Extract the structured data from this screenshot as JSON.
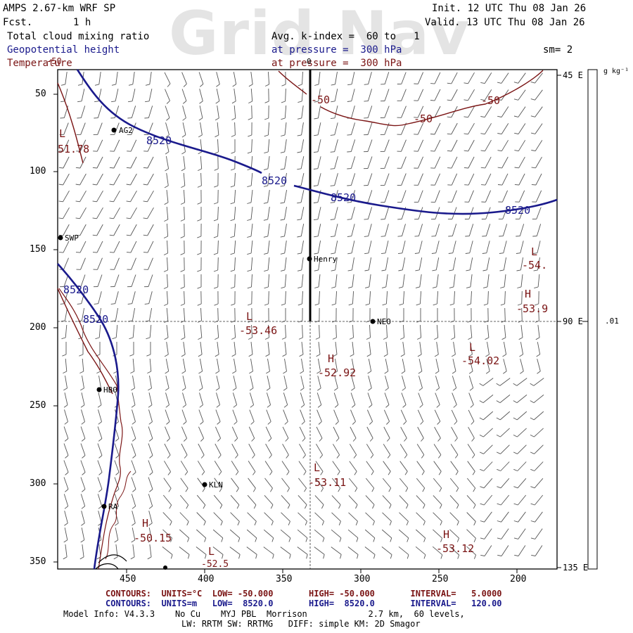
{
  "header": {
    "model_title": "AMPS 2.67-km WRF SP",
    "fcst_label": "Fcst.",
    "fcst_value": "1 h",
    "init": "Init. 12 UTC Thu 08 Jan 26",
    "valid": "Valid. 13 UTC Thu 08 Jan 26",
    "watermark": "Grid Nav"
  },
  "fields": [
    {
      "name": "Total cloud mixing ratio",
      "detail": "Avg. k-index =  60 to   1",
      "color": "#000000"
    },
    {
      "name": "Geopotential height",
      "detail": "at pressure =  300 hPa",
      "color": "#1a1a8c"
    },
    {
      "name": "Temperature",
      "detail": "at pressure =  300 hPa",
      "color": "#7a1414"
    }
  ],
  "smoothing": "sm= 2",
  "colorbar": {
    "units": "g kg⁻¹",
    "tick_label": ".01"
  },
  "axes": {
    "y_ticks": [
      "50",
      "100",
      "150",
      "200",
      "250",
      "300",
      "350"
    ],
    "x_ticks": [
      "450",
      "400",
      "350",
      "300",
      "250",
      "200"
    ],
    "lon_labels": [
      "45 E",
      "90 E",
      "135 E"
    ],
    "lon_top": "0"
  },
  "stations": [
    {
      "code": "AG2"
    },
    {
      "code": "SWP"
    },
    {
      "code": "Henry"
    },
    {
      "code": "NEO"
    },
    {
      "code": "HBO"
    },
    {
      "code": "KLN"
    },
    {
      "code": "RA"
    }
  ],
  "contour_labels": {
    "height": [
      "8520",
      "8520",
      "8520",
      "8520",
      "8520",
      "8520"
    ],
    "temperature": [
      "-50",
      "-50",
      "-50",
      "-50"
    ]
  },
  "extrema": [
    {
      "kind": "L",
      "value": "51.78"
    },
    {
      "kind": "L",
      "value": "-53.46"
    },
    {
      "kind": "H",
      "value": "-52.92"
    },
    {
      "kind": "L",
      "value": "-54.02"
    },
    {
      "kind": "L",
      "value": "-54."
    },
    {
      "kind": "H",
      "value": "-53.9"
    },
    {
      "kind": "L",
      "value": "-53.11"
    },
    {
      "kind": "H",
      "value": "-53.12"
    },
    {
      "kind": "H",
      "value": "-50.15"
    },
    {
      "kind": "L",
      "value": "-52.5"
    }
  ],
  "footer": {
    "red_line": "CONTOURS:  UNITS=°C  LOW= -50.000       HIGH= -50.000       INTERVAL=   5.0000",
    "blue_line": "CONTOURS:  UNITS=m   LOW=  8520.0       HIGH=  8520.0       INTERVAL=   120.00",
    "model_info": "Model Info: V4.3.3    No Cu    MYJ PBL  Morrison            2.7 km,  60 levels,",
    "physics": "LW: RRTM SW: RRTMG   DIFF: simple KM: 2D Smagor"
  }
}
